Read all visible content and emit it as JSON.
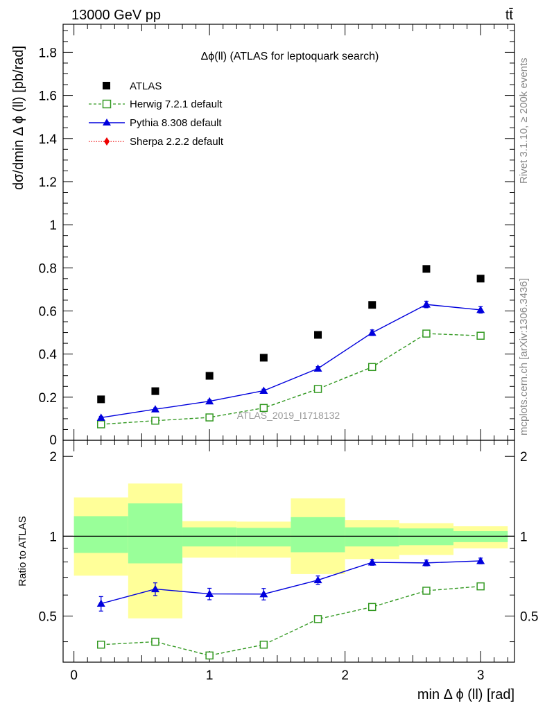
{
  "header": {
    "process": "13000 GeV pp",
    "channel": "tt̄"
  },
  "side_labels": {
    "rivet": "Rivet 3.1.10, ≥ 200k events",
    "mcplots": "mcplots.cern.ch [arXiv:1306.3436]"
  },
  "colors": {
    "atlas": "#000000",
    "herwig": "#339922",
    "pythia": "#0000dd",
    "sherpa": "#ee0000",
    "band_inner": "#99ff99",
    "band_outer": "#ffff99"
  },
  "chart_data": [
    {
      "type": "scatter",
      "title": "Δϕ(ll) (ATLAS for leptoquark search)",
      "ylabel": "dσ/dmin Δ ϕ (ll) [pb/rad]",
      "watermark": "ATLAS_2019_I1718132",
      "xlim": [
        -0.08,
        3.25
      ],
      "ylim": [
        0,
        1.93
      ],
      "yticks": [
        0.2,
        0.4,
        0.6,
        0.8,
        1,
        1.2,
        1.4,
        1.6,
        1.8
      ],
      "ytick_labels": [
        "0.2",
        "0.4",
        "0.6",
        "0.8",
        "1",
        "1.2",
        "1.4",
        "1.6",
        "1.8"
      ],
      "bin_low_label": "0",
      "grid": false,
      "legend_position": "top-left",
      "x": [
        0.2,
        0.6,
        1.0,
        1.4,
        1.8,
        2.2,
        2.6,
        3.0
      ],
      "series": [
        {
          "name": "ATLAS",
          "marker": "square-filled",
          "line": "none",
          "values": [
            0.19,
            0.228,
            0.299,
            0.383,
            0.489,
            0.628,
            0.795,
            0.75
          ]
        },
        {
          "name": "Herwig 7.2.1 default",
          "marker": "square-open",
          "line": "dashed",
          "values": [
            0.074,
            0.091,
            0.106,
            0.15,
            0.238,
            0.34,
            0.495,
            0.485
          ]
        },
        {
          "name": "Pythia 8.308 default",
          "marker": "triangle",
          "line": "solid",
          "values": [
            0.105,
            0.144,
            0.181,
            0.23,
            0.333,
            0.499,
            0.63,
            0.605
          ],
          "errors": [
            0.006,
            0.006,
            0.006,
            0.007,
            0.009,
            0.013,
            0.015,
            0.015
          ]
        },
        {
          "name": "Sherpa 2.2.2 default",
          "marker": "diamond",
          "line": "dotted",
          "values": []
        }
      ]
    },
    {
      "type": "scatter",
      "ylabel": "Ratio to ATLAS",
      "xlabel": "min Δ ϕ (ll) [rad]",
      "xlim": [
        -0.08,
        3.25
      ],
      "ylim": [
        0.335,
        2.3
      ],
      "yticks": [
        0.5,
        1,
        2
      ],
      "ytick_labels": [
        "0.5",
        "1",
        "2"
      ],
      "xticks": [
        0,
        1,
        2,
        3
      ],
      "xtick_labels": [
        "0",
        "1",
        "2",
        "3"
      ],
      "reference": 1,
      "bins": [
        [
          0,
          0.4
        ],
        [
          0.4,
          0.8
        ],
        [
          0.8,
          1.2
        ],
        [
          1.2,
          1.6
        ],
        [
          1.6,
          2.0
        ],
        [
          2.0,
          2.4
        ],
        [
          2.4,
          2.8
        ],
        [
          2.8,
          3.2
        ]
      ],
      "band_inner": [
        [
          0.865,
          1.19
        ],
        [
          0.79,
          1.33
        ],
        [
          0.915,
          1.08
        ],
        [
          0.915,
          1.075
        ],
        [
          0.87,
          1.18
        ],
        [
          0.915,
          1.08
        ],
        [
          0.925,
          1.07
        ],
        [
          0.95,
          1.045
        ]
      ],
      "band_outer": [
        [
          0.71,
          1.4
        ],
        [
          0.49,
          1.58
        ],
        [
          0.83,
          1.14
        ],
        [
          0.83,
          1.135
        ],
        [
          0.72,
          1.39
        ],
        [
          0.82,
          1.15
        ],
        [
          0.85,
          1.12
        ],
        [
          0.9,
          1.09
        ]
      ],
      "x": [
        0.2,
        0.6,
        1.0,
        1.4,
        1.8,
        2.2,
        2.6,
        3.0
      ],
      "series": [
        {
          "name": "Herwig 7.2.1 default",
          "marker": "square-open",
          "line": "dashed",
          "values": [
            0.39,
            0.4,
            0.355,
            0.39,
            0.487,
            0.541,
            0.623,
            0.647
          ]
        },
        {
          "name": "Pythia 8.308 default",
          "marker": "triangle",
          "line": "solid",
          "values": [
            0.557,
            0.632,
            0.606,
            0.605,
            0.683,
            0.797,
            0.793,
            0.807
          ],
          "errors": [
            0.035,
            0.035,
            0.03,
            0.03,
            0.025,
            0.02,
            0.02,
            0.02
          ]
        }
      ]
    }
  ]
}
